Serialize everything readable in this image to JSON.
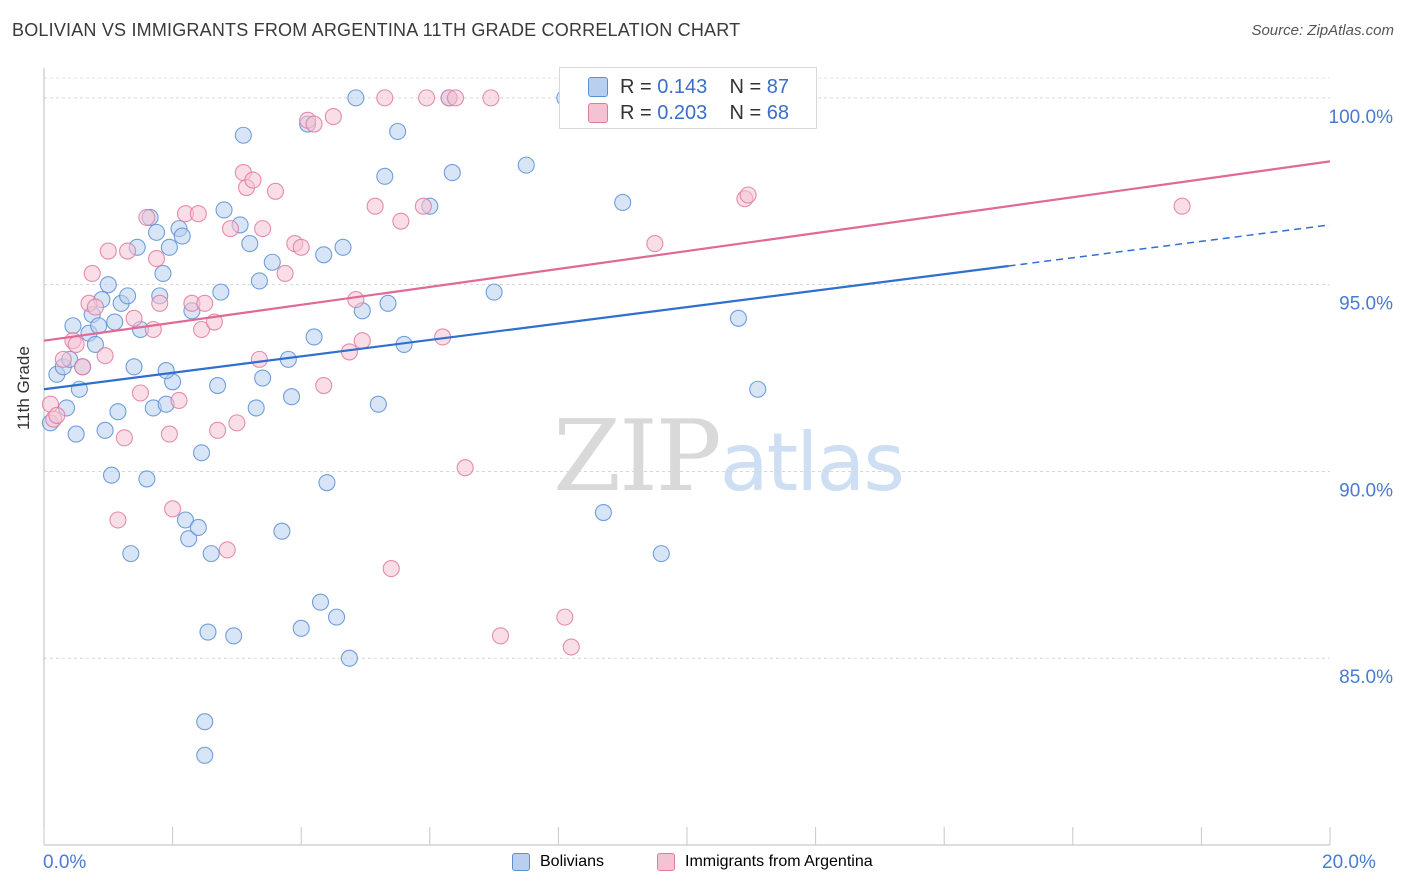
{
  "title": "BOLIVIAN VS IMMIGRANTS FROM ARGENTINA 11TH GRADE CORRELATION CHART",
  "source": "Source: ZipAtlas.com",
  "colors": {
    "blue": "#5b8fd6",
    "blue_fill": "#b8cff0",
    "pink": "#e07aa0",
    "pink_fill": "#f5c2d4",
    "blue_line": "#2f6fcd",
    "pink_line": "#e06a95",
    "axis_text": "#4a7bd0"
  },
  "legend": {
    "rows": [
      {
        "r_label": "R = ",
        "r_value": "0.143",
        "n_label": "N = ",
        "n_value": "87"
      },
      {
        "r_label": "R = ",
        "r_value": "0.203",
        "n_label": "N = ",
        "n_value": "68"
      }
    ]
  },
  "watermark": {
    "zip": "ZIP",
    "atlas": "atlas"
  },
  "chart_data": {
    "type": "scatter",
    "xlabel": "",
    "ylabel": "11th Grade",
    "xlim": [
      0.0,
      20.0
    ],
    "ylim": [
      80.0,
      100.8
    ],
    "x_tick_labels": [
      "0.0%",
      "20.0%"
    ],
    "y_ticks": [
      85.0,
      90.0,
      95.0,
      100.0
    ],
    "y_tick_labels": [
      "85.0%",
      "90.0%",
      "95.0%",
      "100.0%"
    ],
    "grid": true,
    "legend_position": "top-center",
    "series": [
      {
        "name": "Bolivians",
        "color": "#5b8fd6",
        "trend": {
          "x": [
            0.0,
            15.0
          ],
          "y": [
            92.2,
            95.5
          ],
          "dashed_to": [
            20.0,
            96.6
          ]
        },
        "points": [
          [
            0.1,
            91.3
          ],
          [
            0.2,
            92.6
          ],
          [
            0.3,
            92.8
          ],
          [
            0.35,
            91.7
          ],
          [
            0.4,
            93.0
          ],
          [
            0.45,
            93.9
          ],
          [
            0.5,
            91.0
          ],
          [
            0.55,
            92.2
          ],
          [
            0.6,
            92.8
          ],
          [
            0.7,
            93.7
          ],
          [
            0.75,
            94.2
          ],
          [
            0.8,
            93.4
          ],
          [
            0.85,
            93.9
          ],
          [
            0.9,
            94.6
          ],
          [
            0.95,
            91.1
          ],
          [
            1.0,
            95.0
          ],
          [
            1.05,
            89.9
          ],
          [
            1.1,
            94.0
          ],
          [
            1.15,
            91.6
          ],
          [
            1.2,
            94.5
          ],
          [
            1.3,
            94.7
          ],
          [
            1.35,
            87.8
          ],
          [
            1.4,
            92.8
          ],
          [
            1.45,
            96.0
          ],
          [
            1.5,
            93.8
          ],
          [
            1.6,
            89.8
          ],
          [
            1.65,
            96.8
          ],
          [
            1.7,
            91.7
          ],
          [
            1.75,
            96.4
          ],
          [
            1.8,
            94.7
          ],
          [
            1.85,
            95.3
          ],
          [
            1.9,
            91.8
          ],
          [
            1.95,
            96.0
          ],
          [
            2.0,
            92.4
          ],
          [
            2.1,
            96.5
          ],
          [
            2.15,
            96.3
          ],
          [
            2.2,
            88.7
          ],
          [
            2.25,
            88.2
          ],
          [
            2.3,
            94.3
          ],
          [
            2.4,
            88.5
          ],
          [
            2.45,
            90.5
          ],
          [
            2.5,
            83.3
          ],
          [
            2.55,
            85.7
          ],
          [
            2.6,
            87.8
          ],
          [
            2.7,
            92.3
          ],
          [
            2.75,
            94.8
          ],
          [
            2.8,
            97.0
          ],
          [
            2.95,
            85.6
          ],
          [
            3.05,
            96.6
          ],
          [
            3.1,
            99.0
          ],
          [
            3.2,
            96.1
          ],
          [
            3.3,
            91.7
          ],
          [
            3.35,
            95.1
          ],
          [
            3.4,
            92.5
          ],
          [
            3.55,
            95.6
          ],
          [
            3.7,
            88.4
          ],
          [
            3.8,
            93.0
          ],
          [
            3.85,
            92.0
          ],
          [
            4.0,
            85.8
          ],
          [
            4.1,
            99.3
          ],
          [
            4.2,
            93.6
          ],
          [
            4.3,
            86.5
          ],
          [
            4.35,
            95.8
          ],
          [
            4.4,
            89.7
          ],
          [
            4.55,
            86.1
          ],
          [
            4.65,
            96.0
          ],
          [
            4.75,
            85.0
          ],
          [
            4.85,
            100.0
          ],
          [
            4.95,
            94.3
          ],
          [
            5.2,
            91.8
          ],
          [
            5.3,
            97.9
          ],
          [
            5.35,
            94.5
          ],
          [
            5.5,
            99.1
          ],
          [
            5.6,
            93.4
          ],
          [
            6.0,
            97.1
          ],
          [
            6.3,
            100.0
          ],
          [
            6.35,
            98.0
          ],
          [
            7.0,
            94.8
          ],
          [
            7.5,
            98.2
          ],
          [
            8.1,
            100.0
          ],
          [
            8.7,
            88.9
          ],
          [
            9.0,
            97.2
          ],
          [
            9.6,
            87.8
          ],
          [
            10.8,
            94.1
          ],
          [
            11.1,
            92.2
          ],
          [
            2.5,
            82.4
          ],
          [
            1.9,
            92.7
          ]
        ]
      },
      {
        "name": "Immigrants from Argentina",
        "color": "#e07aa0",
        "trend": {
          "x": [
            0.0,
            20.0
          ],
          "y": [
            93.5,
            98.3
          ]
        },
        "points": [
          [
            0.1,
            91.8
          ],
          [
            0.15,
            91.4
          ],
          [
            0.2,
            91.5
          ],
          [
            0.3,
            93.0
          ],
          [
            0.45,
            93.5
          ],
          [
            0.5,
            93.4
          ],
          [
            0.6,
            92.8
          ],
          [
            0.7,
            94.5
          ],
          [
            0.75,
            95.3
          ],
          [
            0.8,
            94.4
          ],
          [
            0.95,
            93.1
          ],
          [
            1.0,
            95.9
          ],
          [
            1.15,
            88.7
          ],
          [
            1.25,
            90.9
          ],
          [
            1.3,
            95.9
          ],
          [
            1.4,
            94.1
          ],
          [
            1.5,
            92.1
          ],
          [
            1.6,
            96.8
          ],
          [
            1.7,
            93.8
          ],
          [
            1.75,
            95.7
          ],
          [
            1.8,
            94.5
          ],
          [
            1.95,
            91.0
          ],
          [
            2.0,
            89.0
          ],
          [
            2.1,
            91.9
          ],
          [
            2.2,
            96.9
          ],
          [
            2.3,
            94.5
          ],
          [
            2.4,
            96.9
          ],
          [
            2.45,
            93.8
          ],
          [
            2.5,
            94.5
          ],
          [
            2.65,
            94.0
          ],
          [
            2.7,
            91.1
          ],
          [
            2.85,
            87.9
          ],
          [
            2.9,
            96.5
          ],
          [
            3.0,
            91.3
          ],
          [
            3.1,
            98.0
          ],
          [
            3.15,
            97.6
          ],
          [
            3.25,
            97.8
          ],
          [
            3.35,
            93.0
          ],
          [
            3.4,
            96.5
          ],
          [
            3.6,
            97.5
          ],
          [
            3.75,
            95.3
          ],
          [
            3.9,
            96.1
          ],
          [
            4.0,
            96.0
          ],
          [
            4.1,
            99.4
          ],
          [
            4.2,
            99.3
          ],
          [
            4.35,
            92.3
          ],
          [
            4.5,
            99.5
          ],
          [
            4.75,
            93.2
          ],
          [
            4.85,
            94.6
          ],
          [
            4.95,
            93.5
          ],
          [
            5.15,
            97.1
          ],
          [
            5.3,
            100.0
          ],
          [
            5.4,
            87.4
          ],
          [
            5.55,
            96.7
          ],
          [
            5.9,
            97.1
          ],
          [
            5.95,
            100.0
          ],
          [
            6.2,
            93.6
          ],
          [
            6.3,
            100.0
          ],
          [
            6.4,
            100.0
          ],
          [
            6.55,
            90.1
          ],
          [
            6.95,
            100.0
          ],
          [
            7.1,
            85.6
          ],
          [
            8.1,
            86.1
          ],
          [
            8.2,
            85.3
          ],
          [
            9.5,
            96.1
          ],
          [
            10.9,
            97.3
          ],
          [
            10.95,
            97.4
          ],
          [
            17.7,
            97.1
          ]
        ]
      }
    ]
  },
  "bottom_legend": [
    {
      "label": "Bolivians"
    },
    {
      "label": "Immigrants from Argentina"
    }
  ]
}
